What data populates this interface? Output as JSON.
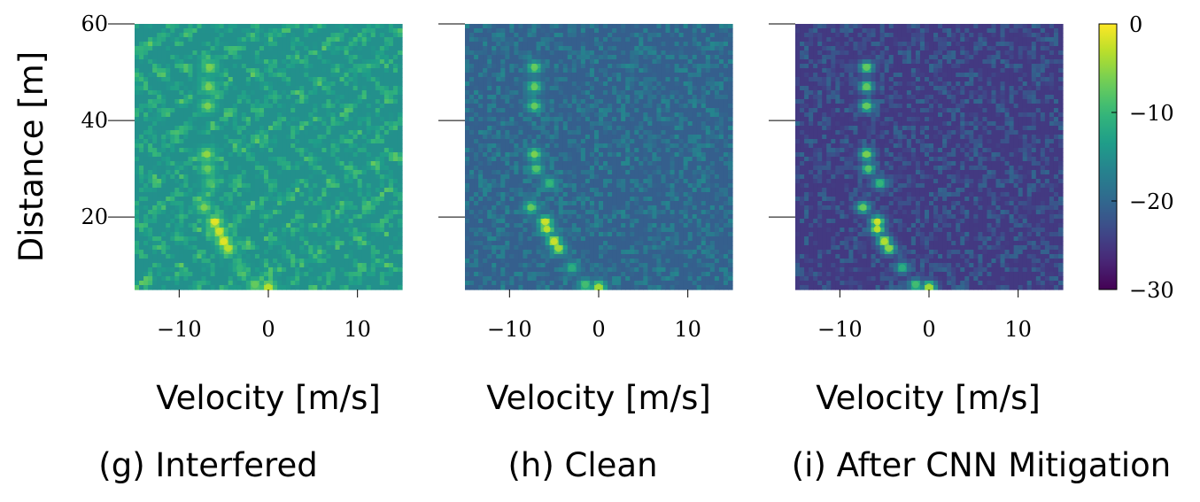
{
  "figure": {
    "colors": {
      "text": "#000000",
      "background": "#ffffff"
    },
    "colormap": "viridis"
  },
  "chart_data": [
    {
      "type": "heatmap",
      "title": "(g) Interfered",
      "xlabel": "Velocity [m/s]",
      "ylabel": "Distance [m]",
      "xlim": [
        -15,
        15
      ],
      "ylim": [
        5,
        60
      ],
      "xticks": [
        "−10",
        "0",
        "10"
      ],
      "xtick_values": [
        -10,
        0,
        10
      ],
      "yticks": [
        "20",
        "40",
        "60"
      ],
      "ytick_values": [
        20,
        40,
        60
      ],
      "background_level": -15,
      "noise_amplitude": 4,
      "interference": true,
      "targets": [
        {
          "velocity": -6.6,
          "distance": 51,
          "value": -6
        },
        {
          "velocity": -6.7,
          "distance": 47,
          "value": -6
        },
        {
          "velocity": -6.8,
          "distance": 43,
          "value": -6
        },
        {
          "velocity": -6.9,
          "distance": 33,
          "value": -5
        },
        {
          "velocity": -6.8,
          "distance": 30,
          "value": -7
        },
        {
          "velocity": -6.5,
          "distance": 27,
          "value": -9
        },
        {
          "velocity": -7.2,
          "distance": 22,
          "value": -6
        },
        {
          "velocity": -6.0,
          "distance": 19,
          "value": -1
        },
        {
          "velocity": -5.5,
          "distance": 17,
          "value": -2
        },
        {
          "velocity": -5.0,
          "distance": 15,
          "value": -1
        },
        {
          "velocity": -4.5,
          "distance": 13.5,
          "value": -3
        },
        {
          "velocity": -3.2,
          "distance": 9.5,
          "value": -10
        },
        {
          "velocity": -1.5,
          "distance": 6,
          "value": -7
        },
        {
          "velocity": 0,
          "distance": 5.5,
          "value": -3
        }
      ]
    },
    {
      "type": "heatmap",
      "title": "(h) Clean",
      "xlabel": "Velocity [m/s]",
      "ylabel": "",
      "xlim": [
        -15,
        15
      ],
      "ylim": [
        5,
        60
      ],
      "xticks": [
        "−10",
        "0",
        "10"
      ],
      "xtick_values": [
        -10,
        0,
        10
      ],
      "yticks": [],
      "ytick_values": [
        20,
        40,
        60
      ],
      "background_level": -21,
      "noise_amplitude": 5,
      "interference": false,
      "targets": [
        {
          "velocity": -7.2,
          "distance": 51,
          "value": -7
        },
        {
          "velocity": -7.2,
          "distance": 47,
          "value": -7
        },
        {
          "velocity": -7.2,
          "distance": 43,
          "value": -7
        },
        {
          "velocity": -7.2,
          "distance": 33,
          "value": -6
        },
        {
          "velocity": -7.0,
          "distance": 30,
          "value": -8
        },
        {
          "velocity": -5.5,
          "distance": 27,
          "value": -10
        },
        {
          "velocity": -7.6,
          "distance": 22,
          "value": -7
        },
        {
          "velocity": -6.0,
          "distance": 19,
          "value": -2
        },
        {
          "velocity": -5.8,
          "distance": 17.5,
          "value": -3
        },
        {
          "velocity": -5.0,
          "distance": 15,
          "value": -2
        },
        {
          "velocity": -4.5,
          "distance": 13.5,
          "value": -4
        },
        {
          "velocity": -3.0,
          "distance": 9.5,
          "value": -11
        },
        {
          "velocity": -1.5,
          "distance": 6,
          "value": -9
        },
        {
          "velocity": 0,
          "distance": 5.5,
          "value": -4
        }
      ]
    },
    {
      "type": "heatmap",
      "title": "(i) After CNN Mitigation",
      "xlabel": "Velocity [m/s]",
      "ylabel": "",
      "xlim": [
        -15,
        15
      ],
      "ylim": [
        5,
        60
      ],
      "xticks": [
        "−10",
        "0",
        "10"
      ],
      "xtick_values": [
        -10,
        0,
        10
      ],
      "yticks": [],
      "ytick_values": [
        20,
        40,
        60
      ],
      "background_level": -25,
      "noise_amplitude": 5,
      "interference": false,
      "targets": [
        {
          "velocity": -7.0,
          "distance": 51,
          "value": -7
        },
        {
          "velocity": -7.0,
          "distance": 47,
          "value": -7
        },
        {
          "velocity": -7.0,
          "distance": 43,
          "value": -7
        },
        {
          "velocity": -7.0,
          "distance": 33,
          "value": -6
        },
        {
          "velocity": -6.8,
          "distance": 30,
          "value": -8
        },
        {
          "velocity": -5.5,
          "distance": 27,
          "value": -10
        },
        {
          "velocity": -7.4,
          "distance": 22,
          "value": -7
        },
        {
          "velocity": -5.8,
          "distance": 19,
          "value": -2
        },
        {
          "velocity": -5.8,
          "distance": 17.5,
          "value": -3
        },
        {
          "velocity": -5.0,
          "distance": 15,
          "value": -3
        },
        {
          "velocity": -4.5,
          "distance": 13.5,
          "value": -5
        },
        {
          "velocity": -3.0,
          "distance": 9.5,
          "value": -11
        },
        {
          "velocity": -1.5,
          "distance": 6,
          "value": -9
        },
        {
          "velocity": 0,
          "distance": 5.5,
          "value": -4
        }
      ]
    }
  ],
  "colorbar": {
    "range": [
      -30,
      0
    ],
    "ticks": [
      "0",
      "−10",
      "−20",
      "−30"
    ],
    "tick_values": [
      0,
      -10,
      -20,
      -30
    ]
  }
}
